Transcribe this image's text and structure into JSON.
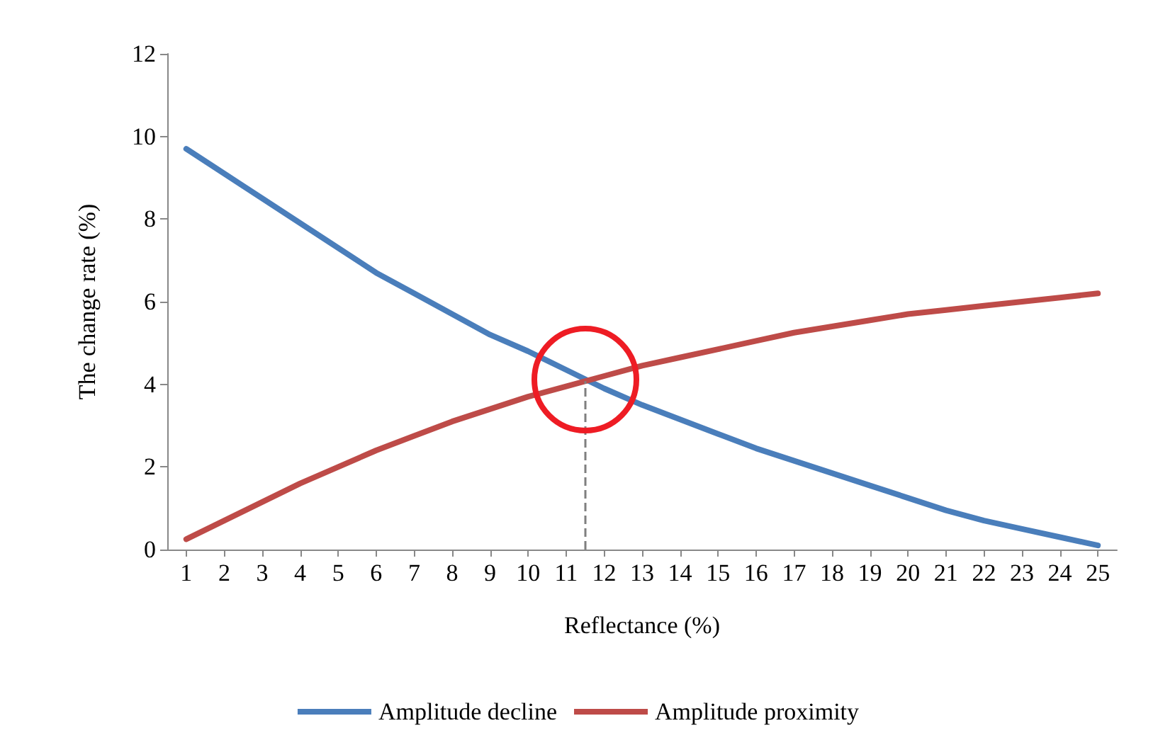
{
  "chart_data": {
    "type": "line",
    "xlabel": "Reflectance (%)",
    "ylabel": "The change rate (%)",
    "x": [
      1,
      2,
      3,
      4,
      5,
      6,
      7,
      8,
      9,
      10,
      11,
      12,
      13,
      14,
      15,
      16,
      17,
      18,
      19,
      20,
      21,
      22,
      23,
      24,
      25
    ],
    "xlim": [
      0.5,
      25.5
    ],
    "xticks": [
      1,
      2,
      3,
      4,
      5,
      6,
      7,
      8,
      9,
      10,
      11,
      12,
      13,
      14,
      15,
      16,
      17,
      18,
      19,
      20,
      21,
      22,
      23,
      24,
      25
    ],
    "ylim": [
      0,
      12
    ],
    "yticks": [
      0,
      2,
      4,
      6,
      8,
      10,
      12
    ],
    "series": [
      {
        "name": "Amplitude decline",
        "color": "#4a7ebb",
        "values": [
          9.7,
          9.1,
          8.5,
          7.9,
          7.3,
          6.7,
          6.2,
          5.7,
          5.2,
          4.8,
          4.35,
          3.9,
          3.5,
          3.15,
          2.8,
          2.45,
          2.15,
          1.85,
          1.55,
          1.25,
          0.95,
          0.7,
          0.5,
          0.3,
          0.1
        ]
      },
      {
        "name": "Amplitude proximity",
        "color": "#be4b48",
        "values": [
          0.25,
          0.7,
          1.15,
          1.6,
          2.0,
          2.4,
          2.75,
          3.1,
          3.4,
          3.7,
          3.95,
          4.2,
          4.45,
          4.65,
          4.85,
          5.05,
          5.25,
          5.4,
          5.55,
          5.7,
          5.8,
          5.9,
          6.0,
          6.1,
          6.2
        ]
      }
    ],
    "ref_lines": [
      {
        "axis": "x",
        "value": 11.5,
        "label": null,
        "color": "#7f7f7f",
        "line_style": "dashed"
      }
    ],
    "grid": false,
    "legend": "bottom",
    "marker": "none",
    "line_style": "solid"
  }
}
